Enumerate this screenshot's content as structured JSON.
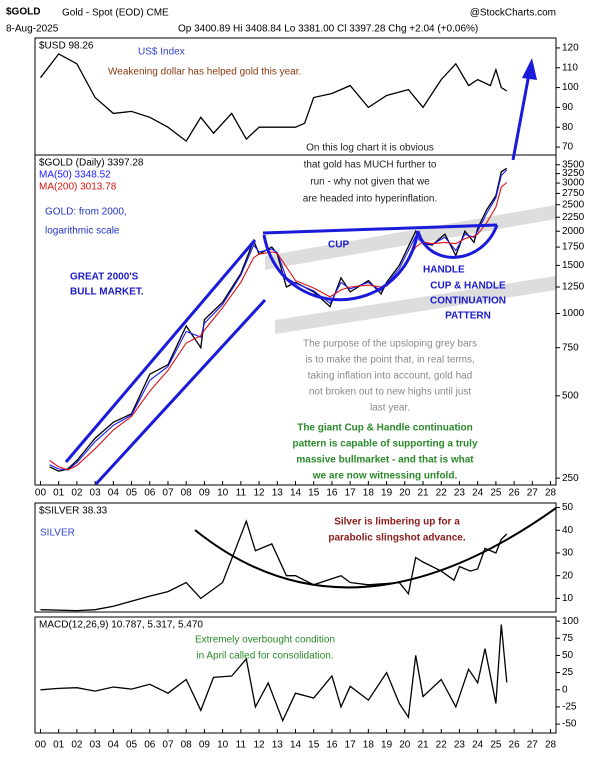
{
  "header": {
    "symbol": "$GOLD",
    "description": "Gold - Spot (EOD) CME",
    "source": "@StockCharts.com",
    "date": "8-Aug-2025",
    "quote": "Op 3400.89 Hi 3408.84 Lo 3381.00 Cl 3397.28 Chg +2.04 (+0.06%)"
  },
  "chart_data": [
    {
      "type": "line",
      "xlim": [
        -0.3,
        28.3
      ],
      "ylim": [
        66,
        125
      ],
      "yticks": [
        120,
        110,
        100,
        90,
        80,
        70
      ],
      "x": [
        0,
        1,
        2,
        3,
        4,
        5,
        6,
        7,
        8,
        8.8,
        9.5,
        10.5,
        11.3,
        12,
        13,
        14,
        14.5,
        15,
        16,
        17,
        18,
        19,
        20.2,
        21,
        22,
        22.8,
        23.5,
        24,
        24.7,
        25,
        25.3,
        25.6
      ],
      "series": [
        {
          "name": "$USD 98.26",
          "color": "#000000",
          "values": [
            105,
            117,
            112,
            95,
            87,
            88,
            85,
            80,
            73,
            85,
            77,
            87,
            74,
            80,
            80,
            80,
            82,
            95,
            97,
            101,
            90,
            96,
            99,
            90,
            104,
            112,
            101,
            104,
            101,
            109,
            100,
            98.26
          ]
        }
      ],
      "annotations": [
        {
          "lines": [
            "US$ Index"
          ],
          "color": "#3344cc"
        },
        {
          "lines": [
            "Weakening dollar has helped gold this year."
          ],
          "color": "#8b3a10"
        }
      ]
    },
    {
      "type": "line",
      "log_scale": true,
      "xlim": [
        -0.3,
        28.3
      ],
      "ylim": [
        236,
        3800
      ],
      "yticks": [
        3500,
        3250,
        3000,
        2750,
        2500,
        2250,
        2000,
        1750,
        1500,
        1250,
        1000,
        750,
        500,
        250
      ],
      "xticks": [
        {
          "value": 0,
          "label": "00"
        },
        {
          "value": 1,
          "label": "01"
        },
        {
          "value": 2,
          "label": "02"
        },
        {
          "value": 3,
          "label": "03"
        },
        {
          "value": 4,
          "label": "04"
        },
        {
          "value": 5,
          "label": "05"
        },
        {
          "value": 6,
          "label": "06"
        },
        {
          "value": 7,
          "label": "07"
        },
        {
          "value": 8,
          "label": "08"
        },
        {
          "value": 9,
          "label": "09"
        },
        10,
        11,
        12,
        13,
        14,
        15,
        16,
        17,
        18,
        19,
        20,
        21,
        22,
        23,
        24,
        25,
        26,
        27,
        28
      ],
      "x": [
        0.5,
        1,
        1.5,
        2,
        3,
        4,
        5,
        6,
        7,
        8,
        8.8,
        9,
        10,
        11,
        11.7,
        12,
        12.7,
        13,
        13.5,
        14,
        15,
        15.9,
        16.5,
        17,
        18,
        18.7,
        19,
        19.7,
        20.6,
        21,
        21.5,
        22.2,
        22.8,
        23.3,
        23.8,
        24,
        24.5,
        25,
        25.3,
        25.6
      ],
      "series": [
        {
          "name": "$GOLD (Daily) 3397.28",
          "color": "#000000",
          "values": [
            275,
            265,
            270,
            290,
            350,
            400,
            430,
            600,
            650,
            900,
            750,
            950,
            1100,
            1400,
            1850,
            1650,
            1750,
            1650,
            1250,
            1300,
            1200,
            1060,
            1350,
            1200,
            1320,
            1180,
            1300,
            1500,
            2000,
            1800,
            1780,
            1950,
            1630,
            2000,
            1820,
            2050,
            2400,
            2700,
            3300,
            3397.28
          ]
        },
        {
          "name": "MA(50) 3348.52",
          "color": "#1a1aff",
          "values": [
            280,
            270,
            268,
            285,
            340,
            390,
            425,
            570,
            640,
            860,
            820,
            920,
            1080,
            1380,
            1780,
            1680,
            1720,
            1670,
            1350,
            1290,
            1210,
            1090,
            1300,
            1230,
            1300,
            1210,
            1280,
            1460,
            1920,
            1810,
            1790,
            1900,
            1700,
            1950,
            1900,
            2000,
            2330,
            2650,
            3200,
            3348.52
          ]
        },
        {
          "name": "MA(200) 3013.78",
          "color": "#dd1111",
          "values": [
            290,
            275,
            268,
            278,
            320,
            375,
            420,
            520,
            620,
            780,
            830,
            870,
            1050,
            1300,
            1600,
            1650,
            1680,
            1660,
            1480,
            1320,
            1240,
            1150,
            1220,
            1250,
            1270,
            1250,
            1260,
            1400,
            1750,
            1830,
            1800,
            1820,
            1800,
            1880,
            1920,
            1950,
            2150,
            2450,
            2900,
            3013.78
          ]
        }
      ],
      "annotations": [
        {
          "lines": [
            "On this log chart it is obvious",
            "that gold has MUCH further to",
            "run - why not given that we",
            "are headed into hyperinflation."
          ],
          "color": "#222222"
        },
        {
          "lines": [
            "GOLD: from 2000,",
            "logarithmic scale"
          ],
          "color": "#2233cc"
        },
        {
          "lines": [
            "GREAT 2000'S",
            "BULL MARKET."
          ],
          "color": "#1a1acc"
        },
        {
          "lines": [
            "CUP"
          ],
          "color": "#1a1acc"
        },
        {
          "lines": [
            "HANDLE"
          ],
          "color": "#1a1acc"
        },
        {
          "lines": [
            "CUP & HANDLE",
            "CONTINUATION",
            "PATTERN"
          ],
          "color": "#1a1acc"
        },
        {
          "lines": [
            "The purpose of the upsloping grey bars",
            "is to make the point that, in real terms,",
            "taking inflation into account, gold had",
            "not broken out to new highs until just",
            "last year."
          ],
          "color": "#8a8a8a"
        },
        {
          "lines": [
            "The giant Cup & Handle continuation",
            "pattern is capable of supporting a truly",
            "massive bullmarket - and that is what",
            "we are now witnessing unfold."
          ],
          "color": "#2a8a2a"
        }
      ]
    },
    {
      "type": "line",
      "xlim": [
        -0.3,
        28.3
      ],
      "ylim": [
        4,
        52
      ],
      "yticks": [
        50,
        40,
        30,
        20,
        10
      ],
      "x": [
        0,
        2,
        3,
        4,
        6,
        7,
        8,
        8.8,
        10,
        11.3,
        11.8,
        12.7,
        13.5,
        14,
        15,
        16.5,
        17,
        18,
        19.7,
        20.2,
        20.6,
        21,
        22,
        22.7,
        23,
        23.6,
        24,
        24.4,
        25,
        25.3,
        25.6
      ],
      "series": [
        {
          "name": "$SILVER 38.33",
          "color": "#000000",
          "values": [
            5,
            4.6,
            5,
            6.5,
            11,
            13,
            17,
            10,
            17,
            44,
            31,
            34,
            20,
            20,
            16,
            20,
            17,
            16,
            17,
            12,
            28,
            26,
            22,
            18,
            24,
            22,
            23,
            32,
            30,
            36,
            38.33
          ]
        }
      ],
      "annotations": [
        {
          "lines": [
            "SILVER"
          ],
          "color": "#3344cc"
        },
        {
          "lines": [
            "Silver is limbering up for a",
            "parabolic slingshot advance."
          ],
          "color": "#8b1a1a"
        }
      ]
    },
    {
      "type": "line",
      "xlim": [
        -0.3,
        28.3
      ],
      "ylim": [
        -63,
        106
      ],
      "yticks": [
        100,
        75,
        50,
        25,
        0,
        -25,
        -50
      ],
      "xticks": [
        {
          "value": 0,
          "label": "00"
        },
        {
          "value": 1,
          "label": "01"
        },
        {
          "value": 2,
          "label": "02"
        },
        {
          "value": 3,
          "label": "03"
        },
        {
          "value": 4,
          "label": "04"
        },
        {
          "value": 5,
          "label": "05"
        },
        {
          "value": 6,
          "label": "06"
        },
        {
          "value": 7,
          "label": "07"
        },
        {
          "value": 8,
          "label": "08"
        },
        {
          "value": 9,
          "label": "09"
        },
        10,
        11,
        12,
        13,
        14,
        15,
        16,
        17,
        18,
        19,
        20,
        21,
        22,
        23,
        24,
        25,
        26,
        27,
        28
      ],
      "x": [
        0,
        1,
        2,
        3,
        4,
        5,
        6,
        7,
        8,
        8.8,
        9.5,
        10.5,
        11.3,
        11.8,
        12.5,
        13.3,
        14,
        15,
        16,
        16.5,
        17,
        18,
        19,
        19.7,
        20.2,
        20.6,
        21,
        22,
        22.8,
        23.5,
        24,
        24.4,
        25,
        25.3,
        25.6
      ],
      "series": [
        {
          "name": "MACD(12,26,9) 10.787, 5.317, 5.470",
          "color": "#000000",
          "values": [
            0,
            2,
            3,
            -2,
            4,
            1,
            8,
            -5,
            15,
            -30,
            18,
            20,
            45,
            -25,
            10,
            -45,
            -5,
            -12,
            20,
            -25,
            5,
            -15,
            25,
            -20,
            -40,
            50,
            -10,
            15,
            -25,
            30,
            10,
            60,
            -20,
            95,
            10.787
          ]
        }
      ],
      "annotations": [
        {
          "lines": [
            "Extremely overbought condition",
            "in April called for consolidation."
          ],
          "color": "#2a8a2a"
        }
      ]
    }
  ]
}
